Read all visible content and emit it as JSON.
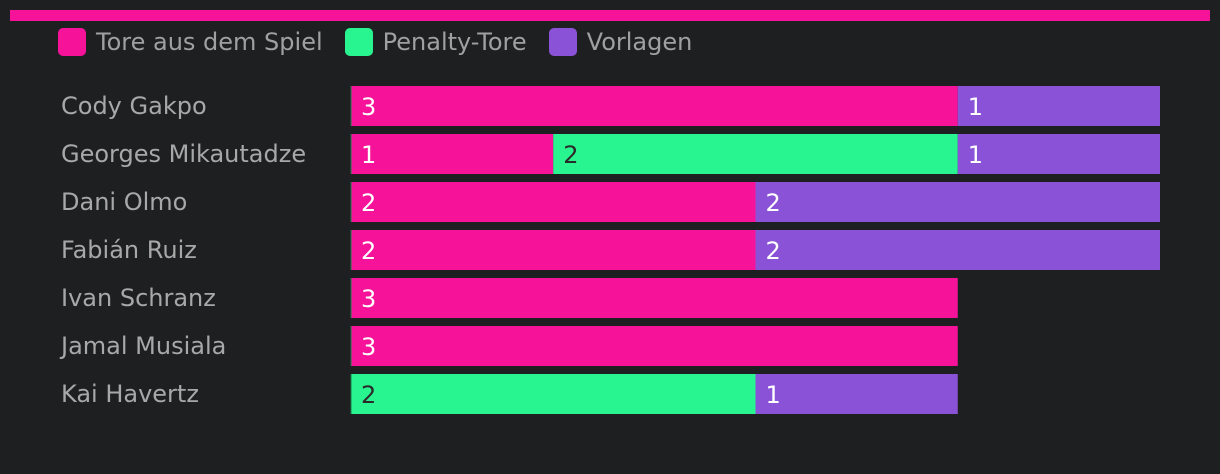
{
  "chart_data": {
    "type": "bar",
    "orientation": "horizontal",
    "stacked": true,
    "categories": [
      "Cody Gakpo",
      "Georges Mikautadze",
      "Dani Olmo",
      "Fabián Ruiz",
      "Ivan Schranz",
      "Jamal Musiala",
      "Kai Havertz"
    ],
    "series": [
      {
        "name": "Tore aus dem Spiel",
        "color": "#f7129a",
        "text_color": "#ffffff",
        "values": [
          3,
          1,
          2,
          2,
          3,
          3,
          0
        ]
      },
      {
        "name": "Penalty-Tore",
        "color": "#29f590",
        "text_color": "#2a2a2a",
        "values": [
          0,
          2,
          0,
          0,
          0,
          0,
          2
        ]
      },
      {
        "name": "Vorlagen",
        "color": "#8a52d6",
        "text_color": "#ffffff",
        "values": [
          1,
          1,
          2,
          2,
          0,
          0,
          1
        ]
      }
    ],
    "xlim": [
      0,
      4
    ],
    "grid": false,
    "legend_position": "top-left",
    "title": "",
    "xlabel": "",
    "ylabel": ""
  },
  "accent_color": "#f7129a",
  "background": "#1e1f21"
}
